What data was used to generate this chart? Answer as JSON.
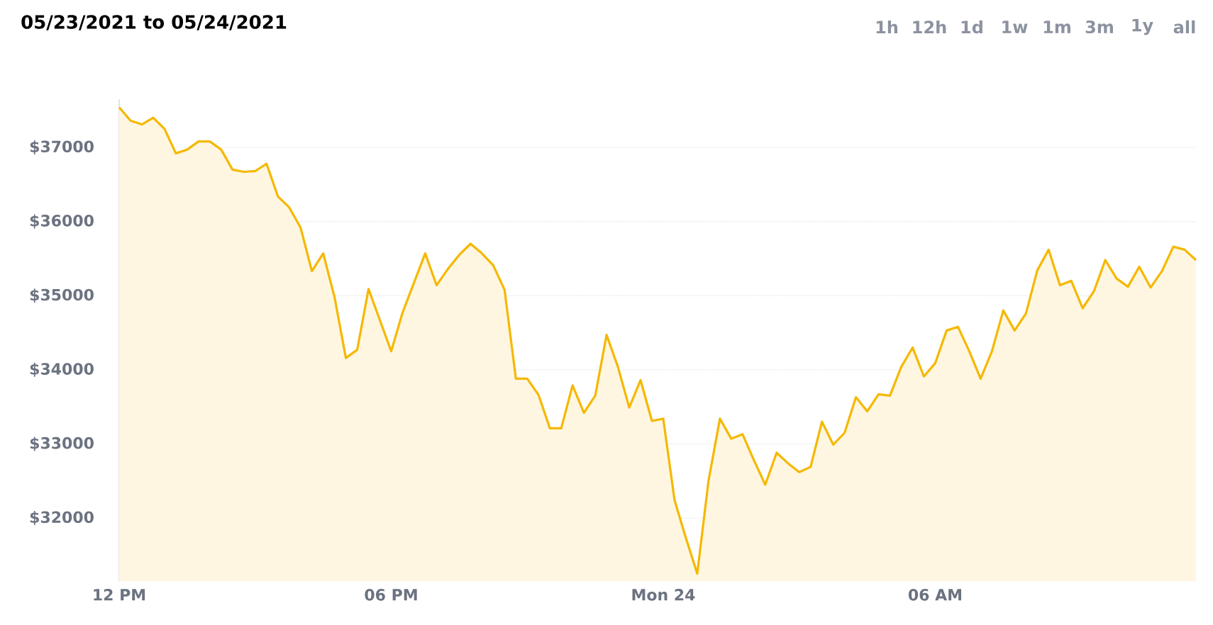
{
  "chart_data": {
    "type": "area",
    "title": "05/23/2021 to 05/24/2021",
    "annotations": [
      "1h",
      "12h",
      "1d",
      "1w",
      "1m",
      "3m",
      "1y",
      "all"
    ],
    "x": [
      "2021-05-23T12:00",
      "2021-05-23T12:15",
      "2021-05-23T12:30",
      "2021-05-23T12:45",
      "2021-05-23T13:00",
      "2021-05-23T13:15",
      "2021-05-23T13:30",
      "2021-05-23T13:45",
      "2021-05-23T14:00",
      "2021-05-23T14:15",
      "2021-05-23T14:30",
      "2021-05-23T14:45",
      "2021-05-23T15:00",
      "2021-05-23T15:15",
      "2021-05-23T15:30",
      "2021-05-23T15:45",
      "2021-05-23T16:00",
      "2021-05-23T16:15",
      "2021-05-23T16:30",
      "2021-05-23T16:45",
      "2021-05-23T17:00",
      "2021-05-23T17:15",
      "2021-05-23T17:30",
      "2021-05-23T17:45",
      "2021-05-23T18:00",
      "2021-05-23T18:15",
      "2021-05-23T18:30",
      "2021-05-23T18:45",
      "2021-05-23T19:00",
      "2021-05-23T19:15",
      "2021-05-23T19:30",
      "2021-05-23T19:45",
      "2021-05-23T20:00",
      "2021-05-23T20:15",
      "2021-05-23T20:30",
      "2021-05-23T20:45",
      "2021-05-23T21:00",
      "2021-05-23T21:15",
      "2021-05-23T21:30",
      "2021-05-23T21:45",
      "2021-05-23T22:00",
      "2021-05-23T22:15",
      "2021-05-23T22:30",
      "2021-05-23T22:45",
      "2021-05-23T23:00",
      "2021-05-23T23:15",
      "2021-05-23T23:30",
      "2021-05-23T23:45",
      "2021-05-24T00:00",
      "2021-05-24T00:15",
      "2021-05-24T00:30",
      "2021-05-24T00:45",
      "2021-05-24T01:00",
      "2021-05-24T01:15",
      "2021-05-24T01:30",
      "2021-05-24T01:45",
      "2021-05-24T02:00",
      "2021-05-24T02:15",
      "2021-05-24T02:30",
      "2021-05-24T02:45",
      "2021-05-24T03:00",
      "2021-05-24T03:15",
      "2021-05-24T03:30",
      "2021-05-24T03:45",
      "2021-05-24T04:00",
      "2021-05-24T04:15",
      "2021-05-24T04:30",
      "2021-05-24T04:45",
      "2021-05-24T05:00",
      "2021-05-24T05:15",
      "2021-05-24T05:30",
      "2021-05-24T05:45",
      "2021-05-24T06:00",
      "2021-05-24T06:15",
      "2021-05-24T06:30",
      "2021-05-24T06:45",
      "2021-05-24T07:00",
      "2021-05-24T07:15",
      "2021-05-24T07:30",
      "2021-05-24T07:45",
      "2021-05-24T08:00",
      "2021-05-24T08:15",
      "2021-05-24T08:30",
      "2021-05-24T08:45",
      "2021-05-24T09:00",
      "2021-05-24T09:15",
      "2021-05-24T09:30",
      "2021-05-24T09:45",
      "2021-05-24T10:00",
      "2021-05-24T10:15",
      "2021-05-24T10:30",
      "2021-05-24T10:45",
      "2021-05-24T11:00",
      "2021-05-24T11:15",
      "2021-05-24T11:30",
      "2021-05-24T11:45"
    ],
    "series": [
      {
        "color": "#f5b800",
        "values": [
          37540,
          37360,
          37310,
          37400,
          37250,
          36920,
          36970,
          37080,
          37080,
          36970,
          36700,
          36670,
          36680,
          36780,
          36340,
          36190,
          35920,
          35330,
          35570,
          34980,
          34160,
          34270,
          35090,
          34670,
          34250,
          34770,
          35170,
          35570,
          35140,
          35360,
          35550,
          35700,
          35570,
          35410,
          35080,
          33880,
          33880,
          33660,
          33210,
          33210,
          33790,
          33420,
          33650,
          34470,
          34040,
          33490,
          33860,
          33310,
          33340,
          32240,
          31730,
          31250,
          32510,
          33340,
          33070,
          33130,
          32780,
          32450,
          32880,
          32740,
          32620,
          32690,
          33300,
          32990,
          33150,
          33630,
          33440,
          33670,
          33650,
          34040,
          34300,
          33910,
          34090,
          34530,
          34580,
          34250,
          33880,
          34250,
          34800,
          34530,
          34760,
          35340,
          35620,
          35140,
          35200,
          34830,
          35060,
          35480,
          35230,
          35120,
          35390,
          35110,
          35330,
          35660,
          35620,
          35480
        ]
      }
    ],
    "xlim": [
      "2021-05-23T12:00",
      "2021-05-24T11:45"
    ],
    "xticks": [
      {
        "value": "2021-05-23T12:00",
        "label": "12 PM"
      },
      {
        "value": "2021-05-23T18:00",
        "label": "06 PM"
      },
      {
        "value": "2021-05-24T00:00",
        "label": "Mon 24"
      },
      {
        "value": "2021-05-24T06:00",
        "label": "06 AM"
      }
    ],
    "ylim": [
      31150,
      37650
    ],
    "yticks": [
      {
        "value": 32000,
        "label": "$32000"
      },
      {
        "value": 33000,
        "label": "$33000"
      },
      {
        "value": 34000,
        "label": "$34000"
      },
      {
        "value": 35000,
        "label": "$35000"
      },
      {
        "value": 36000,
        "label": "$36000"
      },
      {
        "value": 37000,
        "label": "$37000"
      }
    ],
    "grid": "y"
  }
}
